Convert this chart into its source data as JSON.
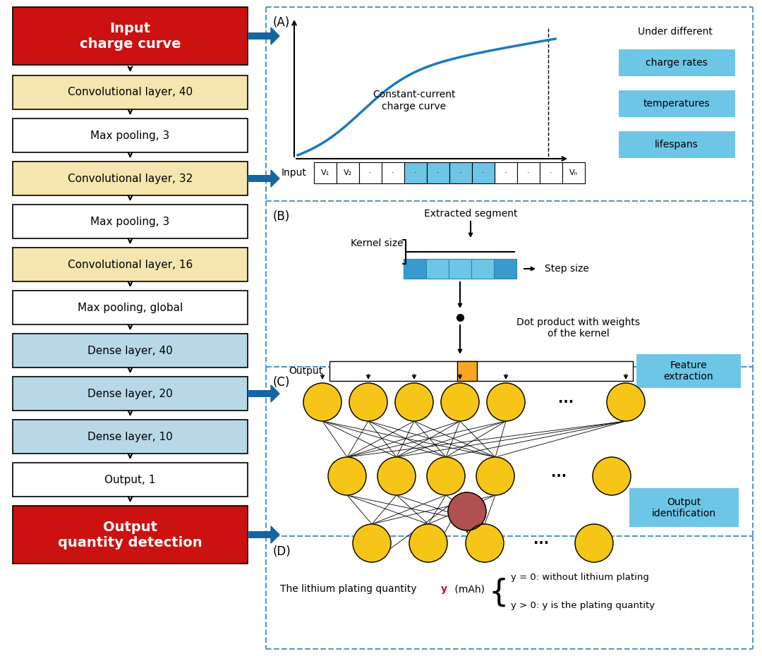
{
  "bg_color": "#ffffff",
  "red_color": "#cc0000",
  "yellow_color": "#f5e6b0",
  "blue_color": "#b8d8e8",
  "cyan_color": "#6ec6e6",
  "orange_color": "#f5a623",
  "gold_color": "#f5c518",
  "dark_blue": "#1565a0",
  "panel_border": "#5599cc",
  "left_blocks": [
    {
      "label": "Input\ncharge curve",
      "color": "#cc1111",
      "tc": "#ffffff",
      "bold": true,
      "fs": 14
    },
    {
      "label": "Convolutional layer, 40",
      "color": "#f5e6b0",
      "tc": "#000000",
      "bold": false,
      "fs": 11
    },
    {
      "label": "Max pooling, 3",
      "color": "#ffffff",
      "tc": "#000000",
      "bold": false,
      "fs": 11
    },
    {
      "label": "Convolutional layer, 32",
      "color": "#f5e6b0",
      "tc": "#000000",
      "bold": false,
      "fs": 11
    },
    {
      "label": "Max pooling, 3",
      "color": "#ffffff",
      "tc": "#000000",
      "bold": false,
      "fs": 11
    },
    {
      "label": "Convolutional layer, 16",
      "color": "#f5e6b0",
      "tc": "#000000",
      "bold": false,
      "fs": 11
    },
    {
      "label": "Max pooling, global",
      "color": "#ffffff",
      "tc": "#000000",
      "bold": false,
      "fs": 11
    },
    {
      "label": "Dense layer, 40",
      "color": "#b8d8e8",
      "tc": "#000000",
      "bold": false,
      "fs": 11
    },
    {
      "label": "Dense layer, 20",
      "color": "#b8d8e8",
      "tc": "#000000",
      "bold": false,
      "fs": 11
    },
    {
      "label": "Dense layer, 10",
      "color": "#b8d8e8",
      "tc": "#000000",
      "bold": false,
      "fs": 11
    },
    {
      "label": "Output, 1",
      "color": "#ffffff",
      "tc": "#000000",
      "bold": false,
      "fs": 11
    },
    {
      "label": "Output\nquantity detection",
      "color": "#cc1111",
      "tc": "#ffffff",
      "bold": true,
      "fs": 14
    }
  ],
  "blue_arrow_color": "#1565a0",
  "gold_node": "#f5c518",
  "red_node": "#b05050"
}
